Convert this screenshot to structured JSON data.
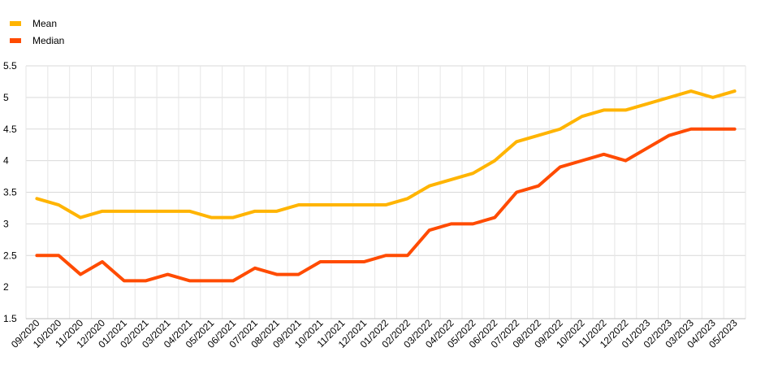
{
  "chart_data": {
    "type": "line",
    "title": "",
    "xlabel": "",
    "ylabel": "",
    "ylim": [
      1.5,
      5.5
    ],
    "yticks": [
      "1.5",
      "2",
      "2.5",
      "3",
      "3.5",
      "4",
      "4.5",
      "5",
      "5.5"
    ],
    "grid": true,
    "legend_position": "top-left",
    "categories": [
      "09/2020",
      "10/2020",
      "11/2020",
      "12/2020",
      "01/2021",
      "02/2021",
      "03/2021",
      "04/2021",
      "05/2021",
      "06/2021",
      "07/2021",
      "08/2021",
      "09/2021",
      "10/2021",
      "11/2021",
      "12/2021",
      "01/2022",
      "02/2022",
      "03/2022",
      "04/2022",
      "05/2022",
      "06/2022",
      "07/2022",
      "08/2022",
      "09/2022",
      "10/2022",
      "11/2022",
      "12/2022",
      "01/2023",
      "02/2023",
      "03/2023",
      "04/2023",
      "05/2023"
    ],
    "series": [
      {
        "name": "Mean",
        "color": "#FFB400",
        "values": [
          3.4,
          3.3,
          3.1,
          3.2,
          3.2,
          3.2,
          3.2,
          3.2,
          3.1,
          3.1,
          3.2,
          3.2,
          3.3,
          3.3,
          3.3,
          3.3,
          3.3,
          3.4,
          3.6,
          3.7,
          3.8,
          4.0,
          4.3,
          4.4,
          4.5,
          4.7,
          4.8,
          4.8,
          4.9,
          5.0,
          5.1,
          5.0,
          5.1
        ]
      },
      {
        "name": "Median",
        "color": "#FF4B00",
        "values": [
          2.5,
          2.5,
          2.2,
          2.4,
          2.1,
          2.1,
          2.2,
          2.1,
          2.1,
          2.1,
          2.3,
          2.2,
          2.2,
          2.4,
          2.4,
          2.4,
          2.5,
          2.5,
          2.9,
          3.0,
          3.0,
          3.1,
          3.5,
          3.6,
          3.9,
          4.0,
          4.1,
          4.0,
          4.2,
          4.4,
          4.5,
          4.5,
          4.5
        ]
      }
    ]
  }
}
